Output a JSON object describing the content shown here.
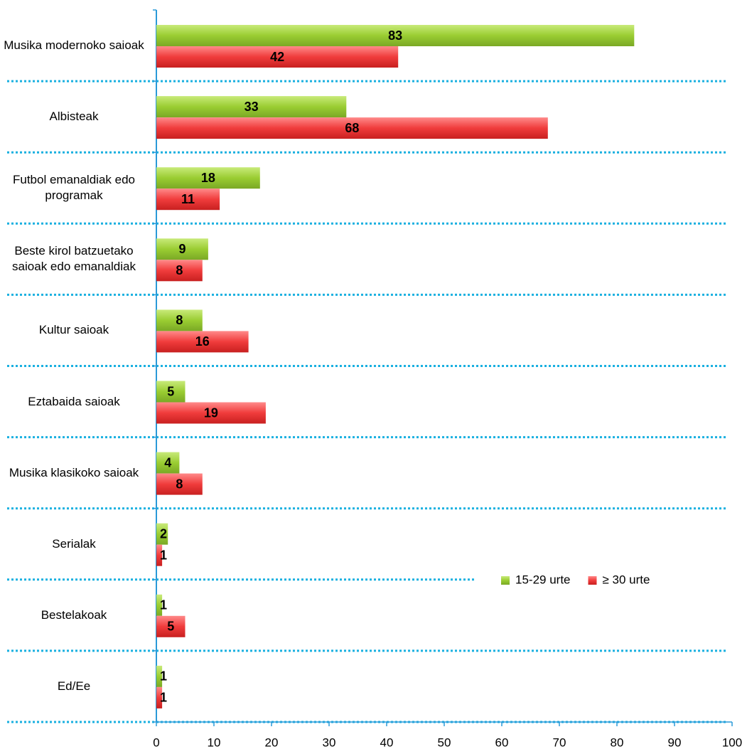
{
  "chart_data": {
    "type": "bar",
    "orientation": "horizontal",
    "categories": [
      "Musika modernoko saioak",
      "Albisteak",
      "Futbol emanaldiak edo programak",
      "Beste kirol batzuetako saioak edo emanaldiak",
      "Kultur saioak",
      "Eztabaida saioak",
      "Musika klasikoko saioak",
      "Serialak",
      "Bestelakoak",
      "Ed/Ee"
    ],
    "series": [
      {
        "name": "15-29 urte",
        "color": "#9acd32",
        "values": [
          83,
          33,
          18,
          9,
          8,
          5,
          4,
          2,
          1,
          1
        ]
      },
      {
        "name": "≥ 30 urte",
        "color": "#f03c3c",
        "values": [
          42,
          68,
          11,
          8,
          16,
          19,
          8,
          1,
          5,
          1
        ]
      }
    ],
    "xlim": [
      0,
      100
    ],
    "xticks": [
      0,
      10,
      20,
      30,
      40,
      50,
      60,
      70,
      80,
      90,
      100
    ],
    "legend": "lower-right",
    "grid": true
  }
}
